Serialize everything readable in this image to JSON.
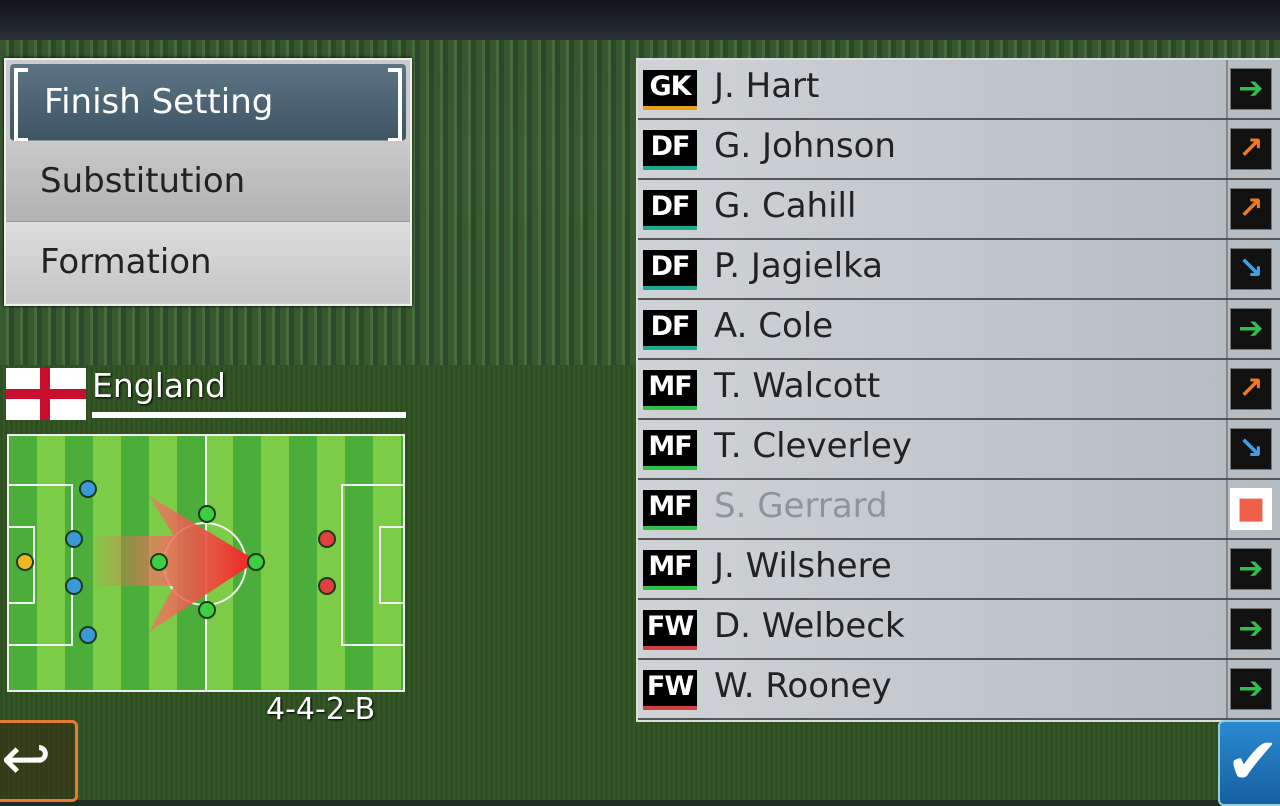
{
  "menu": {
    "items": [
      "Finish Setting",
      "Substitution",
      "Formation"
    ],
    "selected": 0
  },
  "team": {
    "name": "England",
    "formation": "4-4-2-B"
  },
  "position_colors": {
    "GK": "#e8a01a",
    "DF": "#1ea890",
    "MF": "#2fc04a",
    "FW": "#d04040"
  },
  "condition_icons": {
    "normal": "arrow-right-green",
    "good": "arrow-up-right-orange",
    "poor": "arrow-down-right-blue",
    "unavailable": "square-red"
  },
  "players": [
    {
      "pos": "GK",
      "name": "J. Hart",
      "condition": "normal"
    },
    {
      "pos": "DF",
      "name": "G. Johnson",
      "condition": "good"
    },
    {
      "pos": "DF",
      "name": "G. Cahill",
      "condition": "good"
    },
    {
      "pos": "DF",
      "name": "P. Jagielka",
      "condition": "poor"
    },
    {
      "pos": "DF",
      "name": "A. Cole",
      "condition": "normal"
    },
    {
      "pos": "MF",
      "name": "T. Walcott",
      "condition": "good"
    },
    {
      "pos": "MF",
      "name": "T. Cleverley",
      "condition": "poor"
    },
    {
      "pos": "MF",
      "name": "S. Gerrard",
      "condition": "unavailable",
      "disabled": true
    },
    {
      "pos": "MF",
      "name": "J. Wilshere",
      "condition": "normal"
    },
    {
      "pos": "FW",
      "name": "D. Welbeck",
      "condition": "normal"
    },
    {
      "pos": "FW",
      "name": "W. Rooney",
      "condition": "normal"
    }
  ]
}
